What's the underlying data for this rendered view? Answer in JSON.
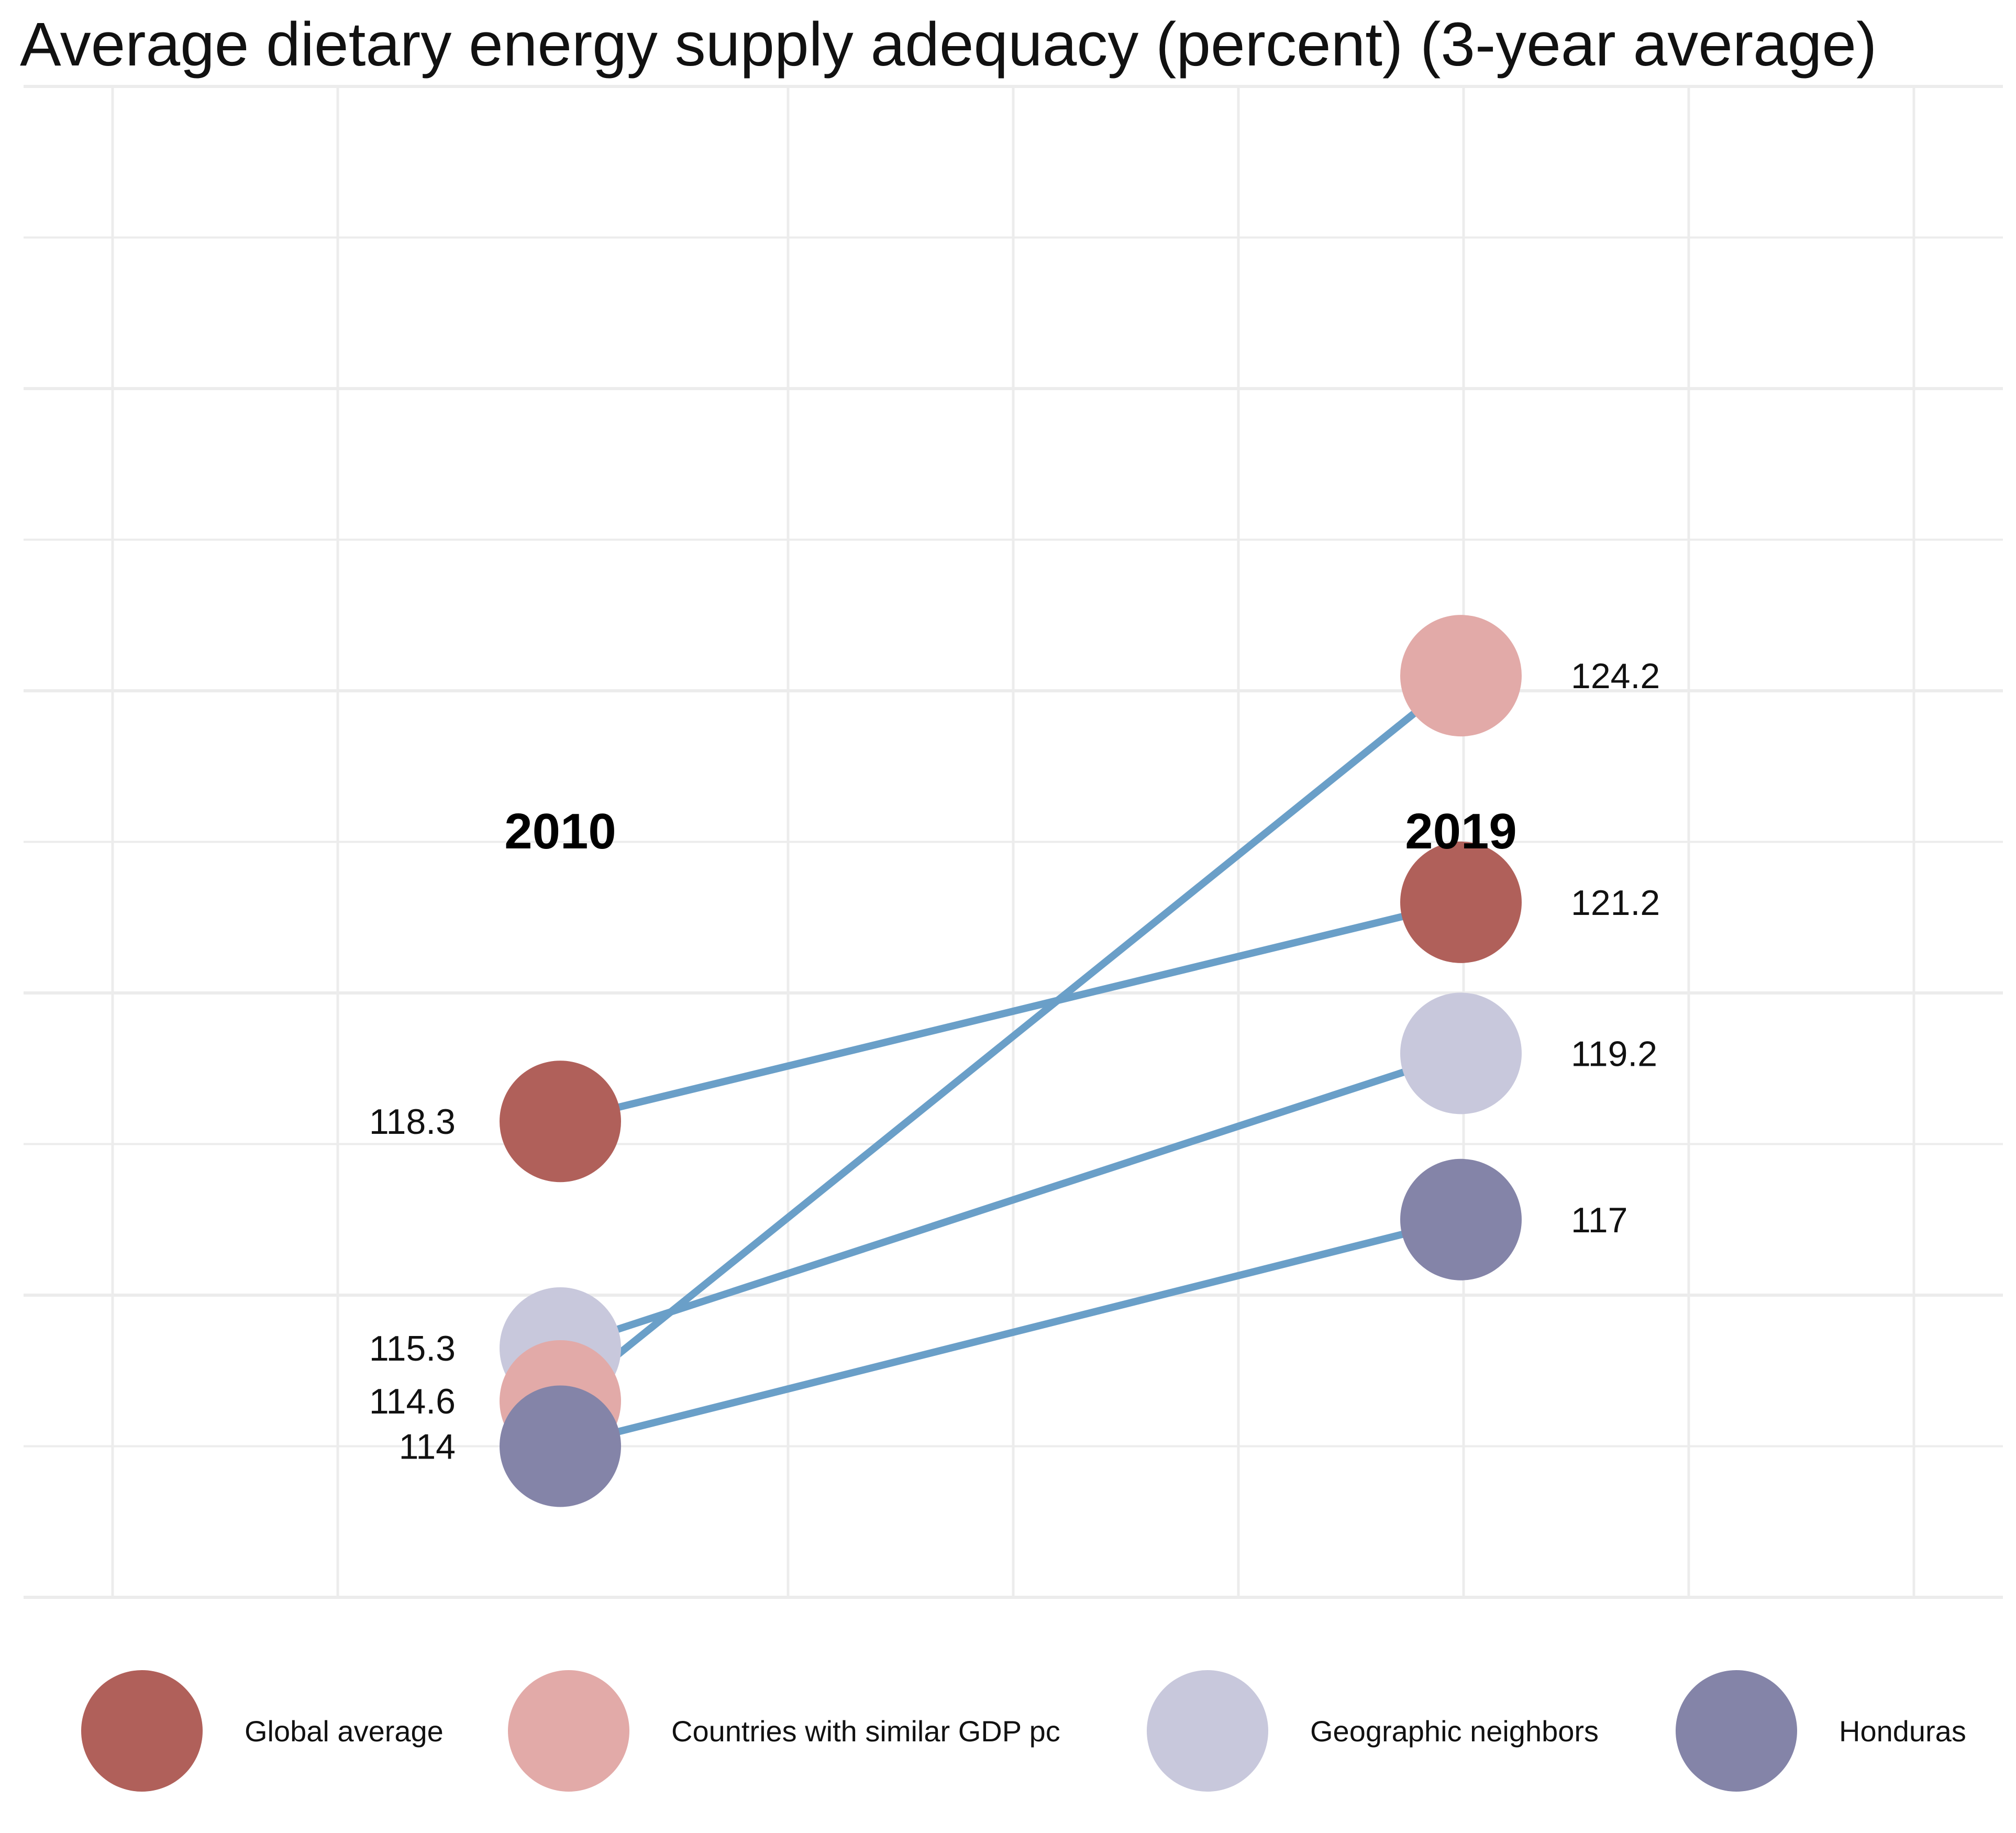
{
  "chart_data": {
    "type": "slope",
    "title": "Average dietary energy supply adequacy (percent) (3-year average)",
    "x_categories": [
      "2010",
      "2019"
    ],
    "ylim": [
      112,
      132
    ],
    "grid": true,
    "legend_position": "bottom",
    "line_color": "#6a9fc8",
    "series": [
      {
        "name": "Global average",
        "color": "#b0605a",
        "values": [
          118.3,
          121.2
        ],
        "labels": [
          "118.3",
          "121.2"
        ]
      },
      {
        "name": "Countries with similar GDP pc",
        "color": "#e2aaa8",
        "values": [
          114.6,
          124.2
        ],
        "labels": [
          "114.6",
          "124.2"
        ]
      },
      {
        "name": "Geographic neighbors",
        "color": "#c8c8dc",
        "values": [
          115.3,
          119.2
        ],
        "labels": [
          "115.3",
          "119.2"
        ]
      },
      {
        "name": "Honduras",
        "color": "#8484a8",
        "values": [
          114,
          117
        ],
        "labels": [
          "114",
          "117"
        ]
      }
    ]
  },
  "legend": {
    "items": [
      {
        "label": "Global average",
        "color": "#b0605a"
      },
      {
        "label": "Countries with similar GDP pc",
        "color": "#e2aaa8"
      },
      {
        "label": "Geographic neighbors",
        "color": "#c8c8dc"
      },
      {
        "label": "Honduras",
        "color": "#8484a8"
      }
    ]
  }
}
